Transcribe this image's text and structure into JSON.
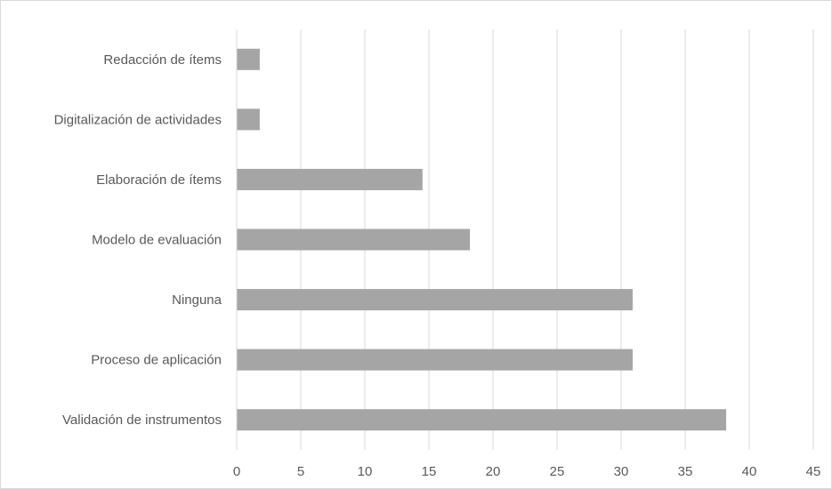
{
  "chart_data": {
    "type": "bar",
    "orientation": "horizontal",
    "title": "",
    "xlabel": "",
    "ylabel": "",
    "categories": [
      "Redacción de ítems",
      "Digitalización de actividades",
      "Elaboración de ítems",
      "Modelo de evaluación",
      "Ninguna",
      "Proceso de aplicación",
      "Validación de instrumentos"
    ],
    "values": [
      1.8,
      1.8,
      14.5,
      18.2,
      30.9,
      30.9,
      38.2
    ],
    "xlim": [
      0,
      45
    ],
    "xticks": [
      "0",
      "5",
      "10",
      "15",
      "20",
      "25",
      "30",
      "35",
      "40",
      "45"
    ],
    "grid": "vertical",
    "legend": "none",
    "bar_color": "#a5a5a5",
    "grid_color": "#d9d9d9"
  }
}
